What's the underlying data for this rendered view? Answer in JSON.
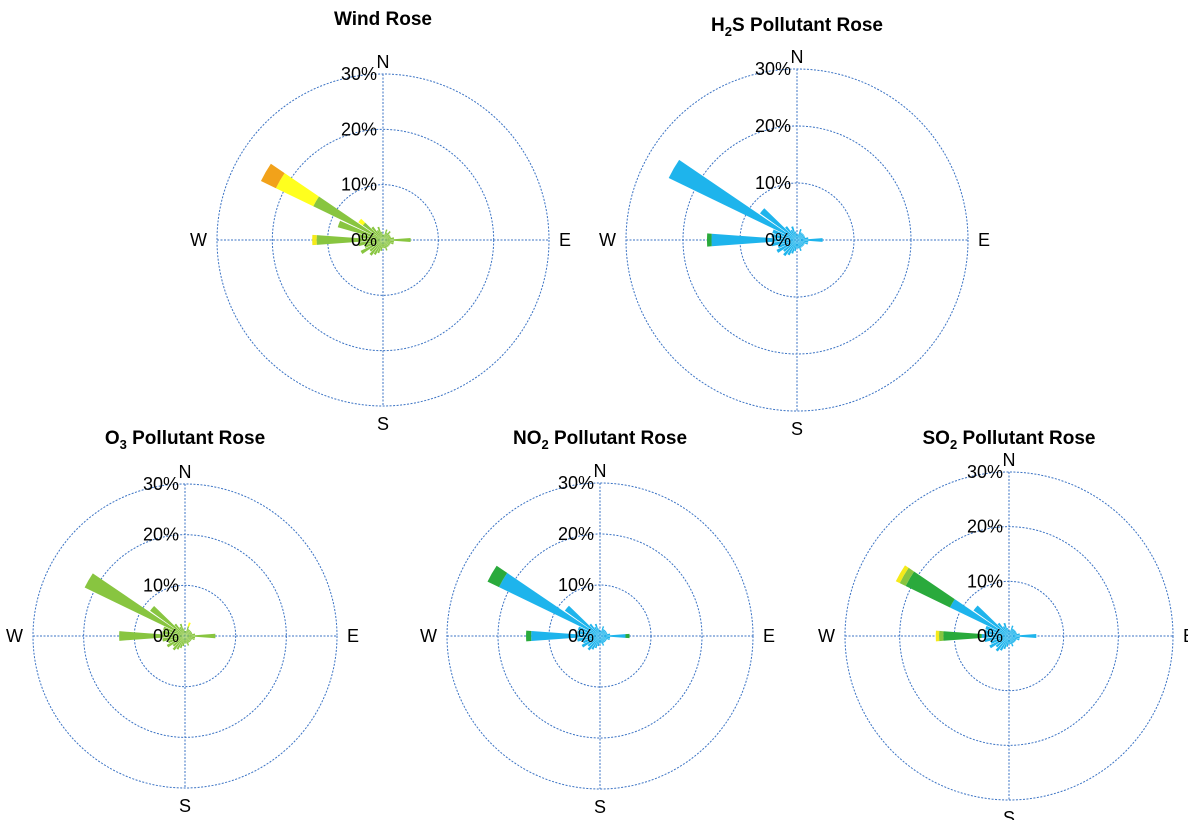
{
  "colors": {
    "grid": "#3b73c4",
    "wind": [
      "#88c540",
      "#2aaa3c",
      "#f5ea1a",
      "#ffff1e",
      "#f2a21a"
    ],
    "pollutant": [
      "#1eb4ec",
      "#2aaa3c",
      "#88c540",
      "#f5ea1a"
    ]
  },
  "chart_data": [
    {
      "type": "wind-rose",
      "title": "Wind Rose",
      "title_main": "Wind Rose",
      "title_sub": "",
      "title_tail": "",
      "rmax": 30,
      "ring_ticks": [
        "0%",
        "10%",
        "20%",
        "30%"
      ],
      "directions": [
        "N",
        "E",
        "S",
        "W"
      ],
      "bins": 36,
      "sector_bearing_deg": [
        0,
        10,
        20,
        30,
        40,
        50,
        60,
        70,
        80,
        90,
        100,
        110,
        120,
        130,
        140,
        150,
        160,
        170,
        180,
        190,
        200,
        210,
        220,
        230,
        240,
        250,
        260,
        270,
        280,
        290,
        300,
        310,
        320,
        330,
        340,
        350
      ],
      "series": [
        {
          "values": [
            1,
            1,
            2,
            1.5,
            2,
            1.5,
            1.5,
            1.5,
            2,
            5,
            2,
            2,
            1.5,
            1.5,
            1.5,
            1.5,
            2,
            1.5,
            1.5,
            2,
            2.5,
            3,
            3.5,
            3,
            4.5,
            3.5,
            4.5,
            12,
            4.5,
            8.5,
            14,
            4.5,
            3,
            2,
            2.5,
            1.5
          ]
        },
        {
          "values": [
            0,
            0,
            0,
            0,
            0,
            0,
            0,
            0,
            0,
            0,
            0,
            0,
            0,
            0,
            0,
            0,
            0,
            0,
            0,
            0,
            0,
            0,
            0,
            0,
            0,
            0,
            0,
            0,
            0,
            0,
            0,
            0,
            0,
            0,
            0,
            0
          ]
        },
        {
          "values": [
            0,
            0,
            0,
            0,
            0,
            0,
            0,
            0,
            0,
            0,
            0,
            0,
            0,
            0,
            0,
            0,
            0,
            0,
            0,
            0,
            0,
            0,
            0,
            0,
            0,
            0,
            0,
            0.8,
            0,
            0,
            0,
            0,
            0,
            0,
            0,
            0
          ]
        },
        {
          "values": [
            0,
            0,
            0,
            0,
            0,
            0,
            0,
            0,
            0,
            0,
            0,
            0,
            0,
            0,
            0,
            0,
            0,
            0,
            0,
            0,
            0,
            0,
            0,
            0,
            0,
            0,
            0,
            0,
            0,
            0,
            7.5,
            1,
            0,
            0,
            0,
            0
          ]
        },
        {
          "values": [
            0,
            0,
            0,
            0,
            0,
            0,
            0,
            0,
            0,
            0,
            0,
            0,
            0,
            0,
            0,
            0,
            0,
            0,
            0,
            0,
            0,
            0,
            0,
            0,
            0,
            0,
            0,
            0,
            0,
            0,
            3,
            0,
            0,
            0,
            0,
            0
          ]
        }
      ]
    },
    {
      "type": "wind-rose",
      "title": "H2S Pollutant Rose",
      "title_main": "H",
      "title_sub": "2",
      "title_tail": "S Pollutant Rose",
      "rmax": 30,
      "ring_ticks": [
        "0%",
        "10%",
        "20%",
        "30%"
      ],
      "directions": [
        "N",
        "E",
        "S",
        "W"
      ],
      "bins": 36,
      "sector_bearing_deg": [
        0,
        10,
        20,
        30,
        40,
        50,
        60,
        70,
        80,
        90,
        100,
        110,
        120,
        130,
        140,
        150,
        160,
        170,
        180,
        190,
        200,
        210,
        220,
        230,
        240,
        250,
        260,
        270,
        280,
        290,
        300,
        310,
        320,
        330,
        340,
        350
      ],
      "series": [
        {
          "values": [
            1,
            1,
            2,
            1.5,
            1.5,
            1.5,
            1.5,
            1.5,
            2,
            4.5,
            2,
            2,
            1.5,
            1.5,
            1.5,
            1.5,
            2,
            1.5,
            1.5,
            2,
            2.5,
            3,
            3.5,
            3,
            4,
            3.5,
            4.5,
            15,
            4.5,
            4.5,
            25,
            8,
            3,
            2,
            2.5,
            1.5
          ]
        },
        {
          "values": [
            0,
            0,
            0,
            0,
            0,
            0,
            0,
            0,
            0,
            0,
            0,
            0,
            0,
            0,
            0,
            0,
            0,
            0,
            0,
            0,
            0,
            0,
            0,
            0,
            0,
            0,
            0,
            0.8,
            0,
            0,
            0,
            0,
            0,
            0,
            0,
            0
          ]
        }
      ]
    },
    {
      "type": "wind-rose",
      "title": "O3 Pollutant Rose",
      "title_main": "O",
      "title_sub": "3",
      "title_tail": " Pollutant Rose",
      "rmax": 30,
      "ring_ticks": [
        "0%",
        "10%",
        "20%",
        "30%"
      ],
      "directions": [
        "N",
        "E",
        "S",
        "W"
      ],
      "bins": 36,
      "sector_bearing_deg": [
        0,
        10,
        20,
        30,
        40,
        50,
        60,
        70,
        80,
        90,
        100,
        110,
        120,
        130,
        140,
        150,
        160,
        170,
        180,
        190,
        200,
        210,
        220,
        230,
        240,
        250,
        260,
        270,
        280,
        290,
        300,
        310,
        320,
        330,
        340,
        350
      ],
      "series": [
        {
          "values": [
            1,
            1,
            2,
            1.5,
            1.5,
            1.5,
            1.5,
            1.5,
            2,
            6,
            2,
            2,
            1.5,
            1.5,
            1.5,
            1.5,
            2,
            1.5,
            1.5,
            2,
            2.5,
            3,
            3.5,
            3,
            4,
            3.5,
            4.5,
            13,
            4.5,
            4.5,
            22,
            8.5,
            3,
            2,
            2.5,
            1.5
          ]
        },
        {
          "values": [
            0,
            0,
            0,
            0,
            0,
            0,
            0,
            0,
            0,
            0,
            0,
            0,
            0,
            0,
            0,
            0,
            0,
            0,
            0,
            0,
            0,
            0,
            0,
            0,
            0,
            0,
            0,
            0,
            0,
            0,
            0,
            0,
            0,
            0,
            0,
            0
          ]
        },
        {
          "values": [
            0,
            0,
            0,
            0,
            0,
            0,
            0,
            0,
            0,
            0,
            0,
            0,
            0,
            0,
            0,
            0,
            0,
            0,
            0,
            0,
            0,
            0,
            0,
            0,
            0,
            0,
            0,
            0,
            0,
            0,
            0,
            0,
            0,
            0,
            0,
            0
          ]
        },
        {
          "values": [
            0,
            0,
            0.8,
            0,
            0,
            0,
            0,
            0,
            0,
            0,
            0,
            0,
            0,
            0,
            0,
            0,
            0,
            0,
            0,
            0,
            0,
            0,
            0,
            0,
            0,
            0,
            0,
            0,
            0,
            0,
            0,
            0,
            0,
            0,
            0,
            0
          ]
        }
      ]
    },
    {
      "type": "wind-rose",
      "title": "NO2 Pollutant Rose",
      "title_main": "NO",
      "title_sub": "2",
      "title_tail": " Pollutant Rose",
      "rmax": 30,
      "ring_ticks": [
        "0%",
        "10%",
        "20%",
        "30%"
      ],
      "directions": [
        "N",
        "E",
        "S",
        "W"
      ],
      "bins": 36,
      "sector_bearing_deg": [
        0,
        10,
        20,
        30,
        40,
        50,
        60,
        70,
        80,
        90,
        100,
        110,
        120,
        130,
        140,
        150,
        160,
        170,
        180,
        190,
        200,
        210,
        220,
        230,
        240,
        250,
        260,
        270,
        280,
        290,
        300,
        310,
        320,
        330,
        340,
        350
      ],
      "series": [
        {
          "values": [
            1,
            1,
            2,
            1.5,
            1.5,
            1.5,
            1.5,
            1.5,
            2,
            5,
            2,
            2,
            1.5,
            1.5,
            1.5,
            1.5,
            2,
            1.5,
            1.5,
            2,
            2.5,
            3,
            3.5,
            3,
            4,
            3.5,
            4.5,
            13.5,
            4.5,
            4.5,
            22,
            8.5,
            3,
            2,
            2.5,
            1.5
          ]
        },
        {
          "values": [
            0,
            0,
            0,
            0,
            0,
            0,
            0,
            0,
            0,
            0.8,
            0,
            0,
            0,
            0,
            0,
            0,
            0,
            0,
            0,
            0,
            0,
            0,
            0,
            0,
            0,
            0,
            0,
            1,
            0,
            0,
            2.5,
            0,
            0,
            0,
            0,
            0
          ]
        }
      ]
    },
    {
      "type": "wind-rose",
      "title": "SO2 Pollutant Rose",
      "title_main": "SO",
      "title_sub": "2",
      "title_tail": "  Pollutant Rose",
      "rmax": 30,
      "ring_ticks": [
        "0%",
        "10%",
        "20%",
        "30%"
      ],
      "directions": [
        "N",
        "E",
        "S",
        "W"
      ],
      "bins": 36,
      "sector_bearing_deg": [
        0,
        10,
        20,
        30,
        40,
        50,
        60,
        70,
        80,
        90,
        100,
        110,
        120,
        130,
        140,
        150,
        160,
        170,
        180,
        190,
        200,
        210,
        220,
        230,
        240,
        250,
        260,
        270,
        280,
        290,
        300,
        310,
        320,
        330,
        340,
        350
      ],
      "series": [
        {
          "values": [
            1,
            1,
            2,
            1.5,
            1.5,
            1.5,
            1.5,
            1.5,
            2,
            5,
            2,
            2,
            1.5,
            1.5,
            1.5,
            1.5,
            2,
            1.5,
            1.5,
            2,
            2.5,
            3,
            3.5,
            3,
            4,
            3.5,
            4.5,
            5,
            4.5,
            4.5,
            12,
            8,
            3,
            2,
            2.5,
            1.5
          ]
        },
        {
          "values": [
            0,
            0,
            0,
            0,
            0,
            0,
            0,
            0,
            0,
            0,
            0,
            0,
            0,
            0,
            0,
            0,
            0,
            0,
            0,
            0,
            0,
            0,
            0,
            0,
            0,
            0,
            0,
            7,
            0,
            0,
            9,
            0,
            0,
            0,
            0,
            0
          ]
        },
        {
          "values": [
            0,
            0,
            0,
            0,
            0,
            0,
            0,
            0,
            0,
            0,
            0,
            0,
            0,
            0,
            0,
            0,
            0,
            0,
            0,
            0,
            0,
            0,
            0,
            0,
            0,
            0,
            0,
            0.8,
            0,
            0,
            1.2,
            0,
            0,
            0,
            0,
            0
          ]
        },
        {
          "values": [
            0,
            0,
            0,
            0,
            0,
            0,
            0,
            0,
            0,
            0,
            0,
            0,
            0,
            0,
            0,
            0,
            0,
            0,
            0,
            0,
            0,
            0,
            0,
            0,
            0,
            0,
            0,
            0.6,
            0,
            0,
            0.8,
            0,
            0,
            0,
            0,
            0
          ]
        }
      ]
    }
  ]
}
